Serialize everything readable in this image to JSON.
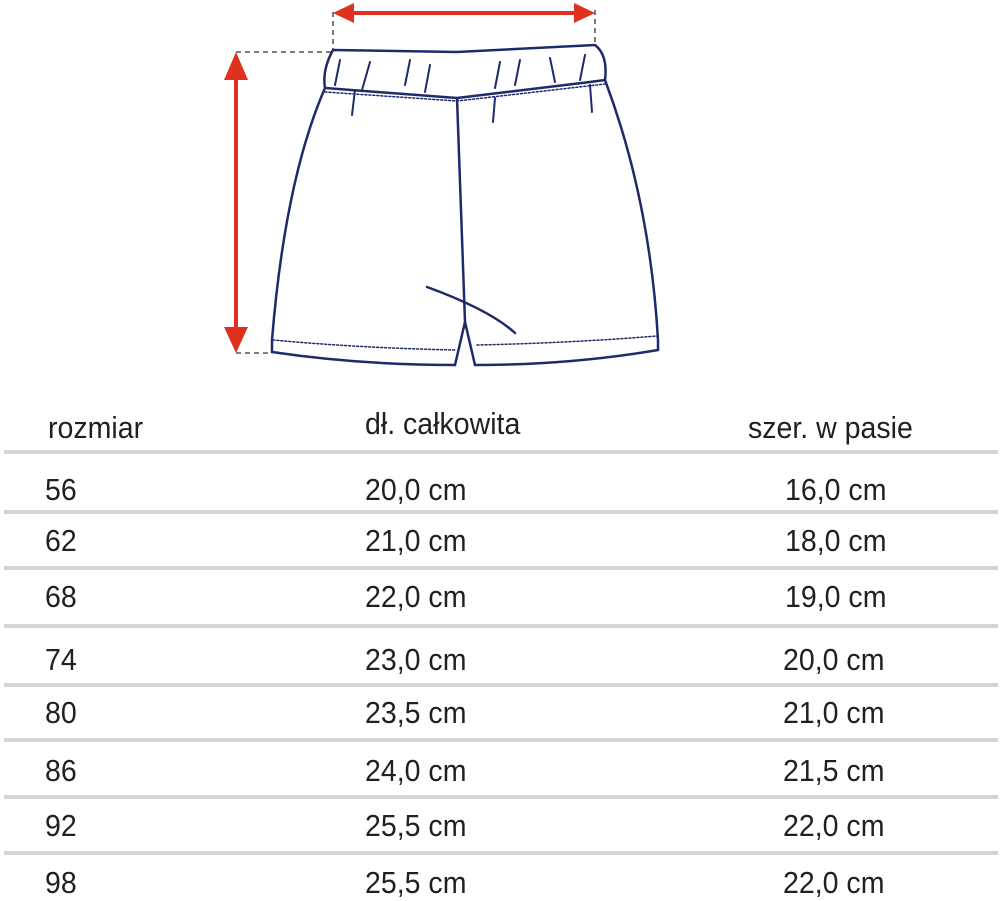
{
  "colors": {
    "outline": "#1f2a6b",
    "arrow": "#e0301e",
    "text": "#231f20",
    "separator": "#d4d4d4"
  },
  "table": {
    "headers": [
      "rozmiar",
      "dł. całkowita",
      "szer. w pasie"
    ],
    "rows": [
      [
        "56",
        "20,0 cm",
        "16,0 cm"
      ],
      [
        "62",
        "21,0 cm",
        "18,0 cm"
      ],
      [
        "68",
        "22,0 cm",
        "19,0 cm"
      ],
      [
        "74",
        "23,0 cm",
        "20,0 cm"
      ],
      [
        "80",
        "23,5 cm",
        "21,0 cm"
      ],
      [
        "86",
        "24,0 cm",
        "21,5 cm"
      ],
      [
        "92",
        "25,5 cm",
        "22,0 cm"
      ],
      [
        "98",
        "25,5 cm",
        "22,0 cm"
      ]
    ]
  }
}
